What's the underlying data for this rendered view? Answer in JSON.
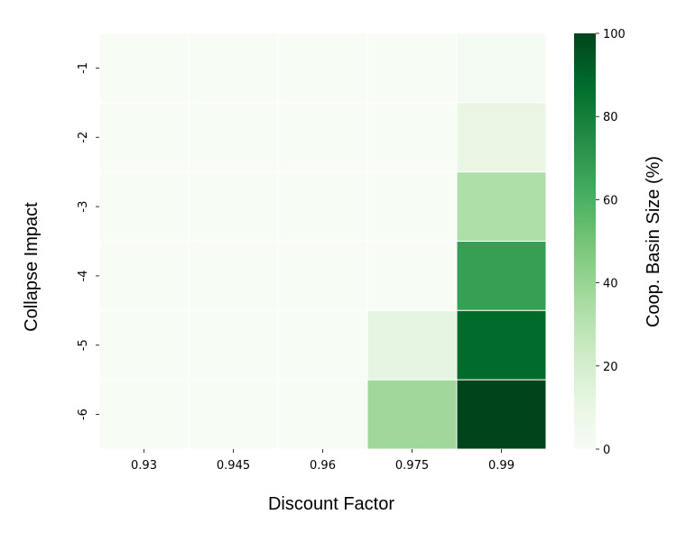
{
  "chart_data": {
    "type": "heatmap",
    "xlabel": "Discount Factor",
    "ylabel": "Collapse Impact",
    "x_categories": [
      "0.93",
      "0.945",
      "0.96",
      "0.975",
      "0.99"
    ],
    "y_categories": [
      "-1",
      "-2",
      "-3",
      "-4",
      "-5",
      "-6"
    ],
    "values": [
      [
        0,
        0,
        0,
        0,
        2
      ],
      [
        0,
        0,
        0,
        0,
        10
      ],
      [
        0,
        0,
        0,
        0,
        33
      ],
      [
        0,
        0,
        0,
        0,
        67
      ],
      [
        0,
        0,
        0,
        12,
        88
      ],
      [
        0,
        0,
        0,
        38,
        100
      ]
    ],
    "colorbar": {
      "label": "Coop. Basin Size (%)",
      "range": [
        0,
        100
      ],
      "ticks": [
        "0",
        "20",
        "40",
        "60",
        "80",
        "100"
      ],
      "colormap": "Greens"
    },
    "grid": true
  }
}
